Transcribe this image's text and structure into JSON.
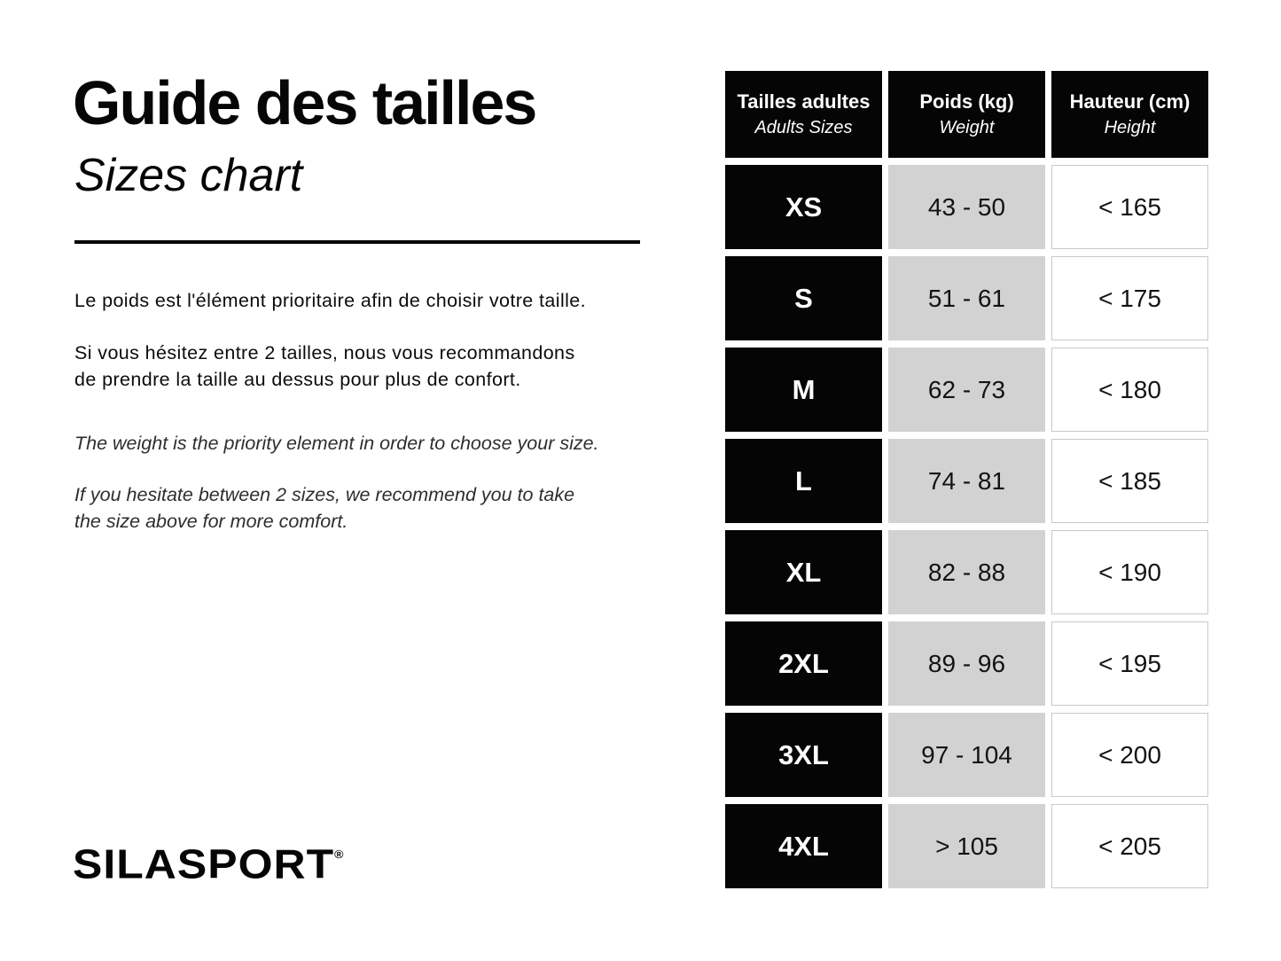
{
  "header": {
    "title_fr": "Guide des tailles",
    "title_en": "Sizes chart"
  },
  "intro": {
    "fr1": "Le poids est l'élément prioritaire afin de choisir votre taille.",
    "fr2_line1": "Si vous hésitez entre 2 tailles, nous vous recommandons",
    "fr2_line2": "de prendre la taille au dessus pour plus de confort.",
    "en1": "The weight is the priority element in order to choose your size.",
    "en2_line1": "If you hesitate between 2 sizes, we recommend you to take",
    "en2_line2": "the size above for more comfort."
  },
  "brand": {
    "name": "SILASPORT",
    "mark": "®"
  },
  "chart_data": {
    "type": "table",
    "title": "Guide des tailles / Sizes chart",
    "columns": [
      {
        "label_fr": "Tailles adultes",
        "label_en": "Adults Sizes"
      },
      {
        "label_fr": "Poids (kg)",
        "label_en": "Weight"
      },
      {
        "label_fr": "Hauteur (cm)",
        "label_en": "Height"
      }
    ],
    "rows": [
      {
        "size": "XS",
        "weight_kg": "43 - 50",
        "height_cm": "< 165"
      },
      {
        "size": "S",
        "weight_kg": "51 - 61",
        "height_cm": "< 175"
      },
      {
        "size": "M",
        "weight_kg": "62 - 73",
        "height_cm": "< 180"
      },
      {
        "size": "L",
        "weight_kg": "74 - 81",
        "height_cm": "< 185"
      },
      {
        "size": "XL",
        "weight_kg": "82 - 88",
        "height_cm": "< 190"
      },
      {
        "size": "2XL",
        "weight_kg": "89 - 96",
        "height_cm": "< 195"
      },
      {
        "size": "3XL",
        "weight_kg": "97 - 104",
        "height_cm": "< 200"
      },
      {
        "size": "4XL",
        "weight_kg": "> 105",
        "height_cm": "< 205"
      }
    ]
  },
  "colors": {
    "background": "#ffffff",
    "header_bg": "#050505",
    "size_cell_bg": "#050505",
    "weight_cell_bg": "#d2d2d2",
    "height_cell_border": "#c9c9c9",
    "text_dark": "#0c0c0c"
  }
}
